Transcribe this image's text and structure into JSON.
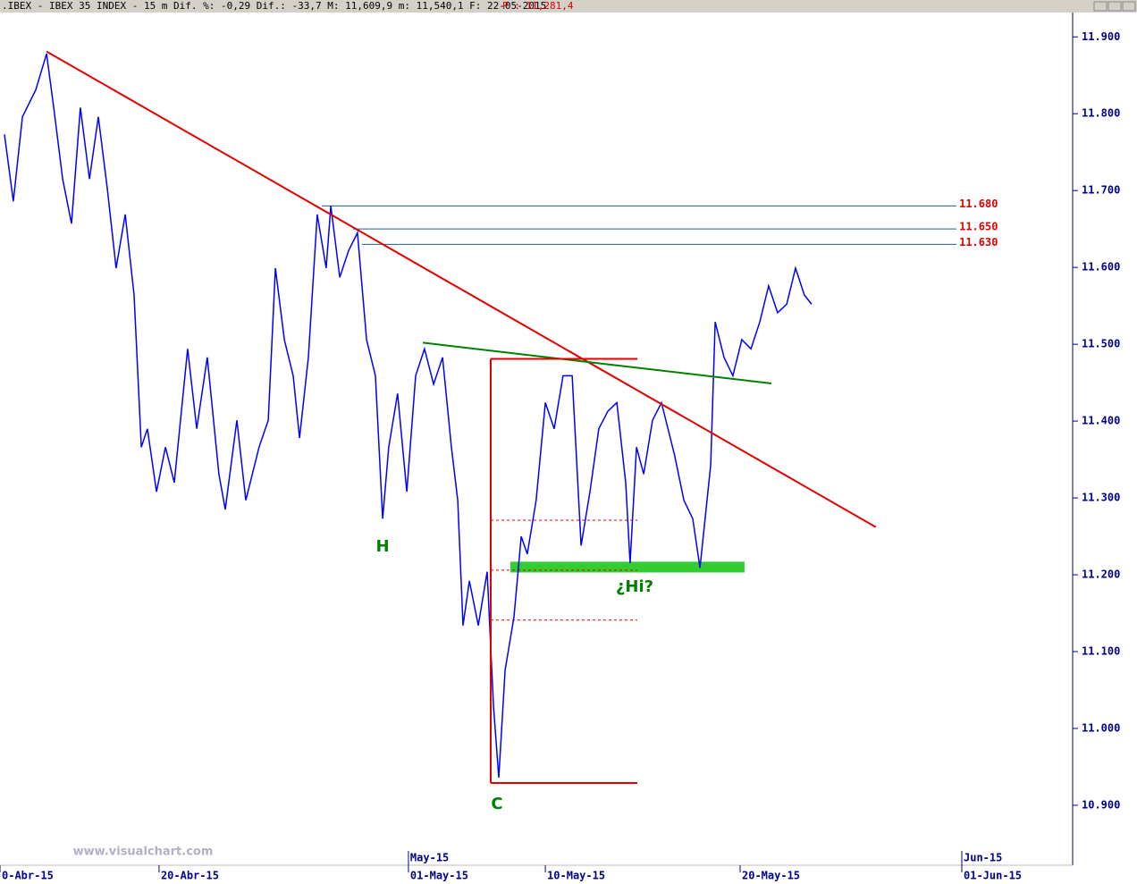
{
  "header": {
    "text": ".IBEX - IBEX 35 INDEX -  15 m Dif. %: -0,29 Dif.: -33,7 M: 11,609,9 m: 11,540,1 F: 22-05-2015",
    "price": "P : 11,281,4",
    "watermark": "www.visualchart.com"
  },
  "chart_data": {
    "type": "line",
    "x": [
      0.16,
      0.48,
      0.81,
      1.29,
      1.68,
      1.94,
      2.26,
      2.58,
      2.9,
      3.23,
      3.55,
      3.87,
      4.19,
      4.52,
      4.84,
      5.1,
      5.32,
      5.65,
      5.97,
      6.29,
      6.77,
      7.1,
      7.48,
      7.9,
      8.13,
      8.55,
      8.87,
      9.35,
      9.68,
      9.94,
      10.26,
      10.58,
      10.81,
      11.13,
      11.45,
      11.77,
      11.94,
      12.26,
      12.58,
      12.9,
      13.23,
      13.55,
      13.81,
      14.03,
      14.35,
      14.68,
      15,
      15.32,
      15.65,
      15.97,
      16.29,
      16.52,
      16.71,
      16.94,
      17.26,
      17.58,
      17.81,
      18,
      18.23,
      18.55,
      18.81,
      19.03,
      19.35,
      19.68,
      20,
      20.32,
      20.65,
      20.97,
      21.29,
      21.61,
      21.94,
      22.26,
      22.58,
      22.74,
      22.97,
      23.23,
      23.55,
      23.87,
      24.35,
      24.68,
      25,
      25.26,
      25.48,
      25.65,
      25.81,
      26.13,
      26.45,
      26.77,
      27.1,
      27.42,
      27.74,
      28.06,
      28.39,
      28.71,
      29.03,
      29.29
    ],
    "series": [
      {
        "name": "IBEX 35",
        "color": "#0000ff",
        "values": [
          11773,
          11686,
          11796,
          11831,
          11878,
          11808,
          11715,
          11657,
          11808,
          11715,
          11796,
          11703,
          11599,
          11669,
          11564,
          11366,
          11390,
          11308,
          11366,
          11320,
          11494,
          11390,
          11483,
          11331,
          11285,
          11401,
          11297,
          11366,
          11401,
          11599,
          11506,
          11459,
          11378,
          11483,
          11669,
          11599,
          11680,
          11587,
          11622,
          11645,
          11506,
          11459,
          11273,
          11366,
          11436,
          11308,
          11459,
          11494,
          11448,
          11483,
          11366,
          11297,
          11134,
          11192,
          11134,
          11204,
          11029,
          10936,
          11076,
          11145,
          11250,
          11227,
          11297,
          11424,
          11390,
          11459,
          11459,
          11238,
          11308,
          11390,
          11413,
          11424,
          11320,
          11215,
          11366,
          11331,
          11401,
          11424,
          11355,
          11297,
          11273,
          11209,
          11285,
          11343,
          11529,
          11483,
          11459,
          11506,
          11494,
          11529,
          11576,
          11541,
          11552,
          11599,
          11564,
          11552
        ]
      }
    ],
    "xlim": [
      0,
      38.71
    ],
    "ylim": [
      10822,
      11948
    ],
    "yticks": [
      {
        "value": 10900,
        "label": "10.900"
      },
      {
        "value": 11000,
        "label": "11.000"
      },
      {
        "value": 11100,
        "label": "11.100"
      },
      {
        "value": 11200,
        "label": "11.200"
      },
      {
        "value": 11300,
        "label": "11.300"
      },
      {
        "value": 11400,
        "label": "11.400"
      },
      {
        "value": 11500,
        "label": "11.500"
      },
      {
        "value": 11600,
        "label": "11.600"
      },
      {
        "value": 11700,
        "label": "11.700"
      },
      {
        "value": 11800,
        "label": "11.800"
      },
      {
        "value": 11900,
        "label": "11.900"
      }
    ],
    "xticks": [
      {
        "value": 0,
        "label": "0-Abr-15"
      },
      {
        "value": 5.74,
        "label": "20-Abr-15"
      },
      {
        "value": 14.74,
        "label": "01-May-15"
      },
      {
        "value": 19.68,
        "label": "10-May-15"
      },
      {
        "value": 26.71,
        "label": "20-May-15"
      },
      {
        "value": 34.71,
        "label": "01-Jun-15"
      }
    ],
    "month_ticks": [
      {
        "value": 14.74,
        "label": "May-15"
      },
      {
        "value": 34.71,
        "label": "Jun-15"
      }
    ],
    "levels": [
      {
        "value": 11680,
        "label": "11.680",
        "x": [
          11.61,
          34.52
        ]
      },
      {
        "value": 11650,
        "label": "11.650",
        "x": [
          12.74,
          34.52
        ]
      },
      {
        "value": 11630,
        "label": "11.630",
        "x": [
          13.06,
          34.52
        ]
      }
    ],
    "level_color": "#1f5f8b",
    "level_label_color": "#e00000",
    "trendlines": [
      {
        "color": "#e00000",
        "x": [
          1.68,
          31.61
        ],
        "y": [
          11881,
          11262
        ]
      },
      {
        "color": "#008000",
        "x": [
          15.26,
          27.84
        ],
        "y": [
          11502,
          11449
        ]
      },
      {
        "color": "#e00000",
        "x": [
          17.71,
          17.71
        ],
        "y": [
          11481,
          10929
        ]
      },
      {
        "color": "#e00000",
        "x": [
          17.71,
          23
        ],
        "y": [
          11481,
          11481
        ]
      },
      {
        "color": "#e00000",
        "x": [
          17.71,
          23
        ],
        "y": [
          10929,
          10929
        ]
      }
    ],
    "dotted": [
      {
        "color": "#e00000",
        "x": [
          17.71,
          23
        ],
        "y": 11271
      },
      {
        "color": "#e00000",
        "x": [
          17.71,
          23
        ],
        "y": 11206
      },
      {
        "color": "#e00000",
        "x": [
          17.71,
          23
        ],
        "y": 11141
      }
    ],
    "band": {
      "color": "#33cc33",
      "x": [
        18.42,
        26.87
      ],
      "y": [
        11203,
        11217
      ]
    },
    "annotations": [
      "H",
      "C",
      "¿Hi?"
    ]
  }
}
